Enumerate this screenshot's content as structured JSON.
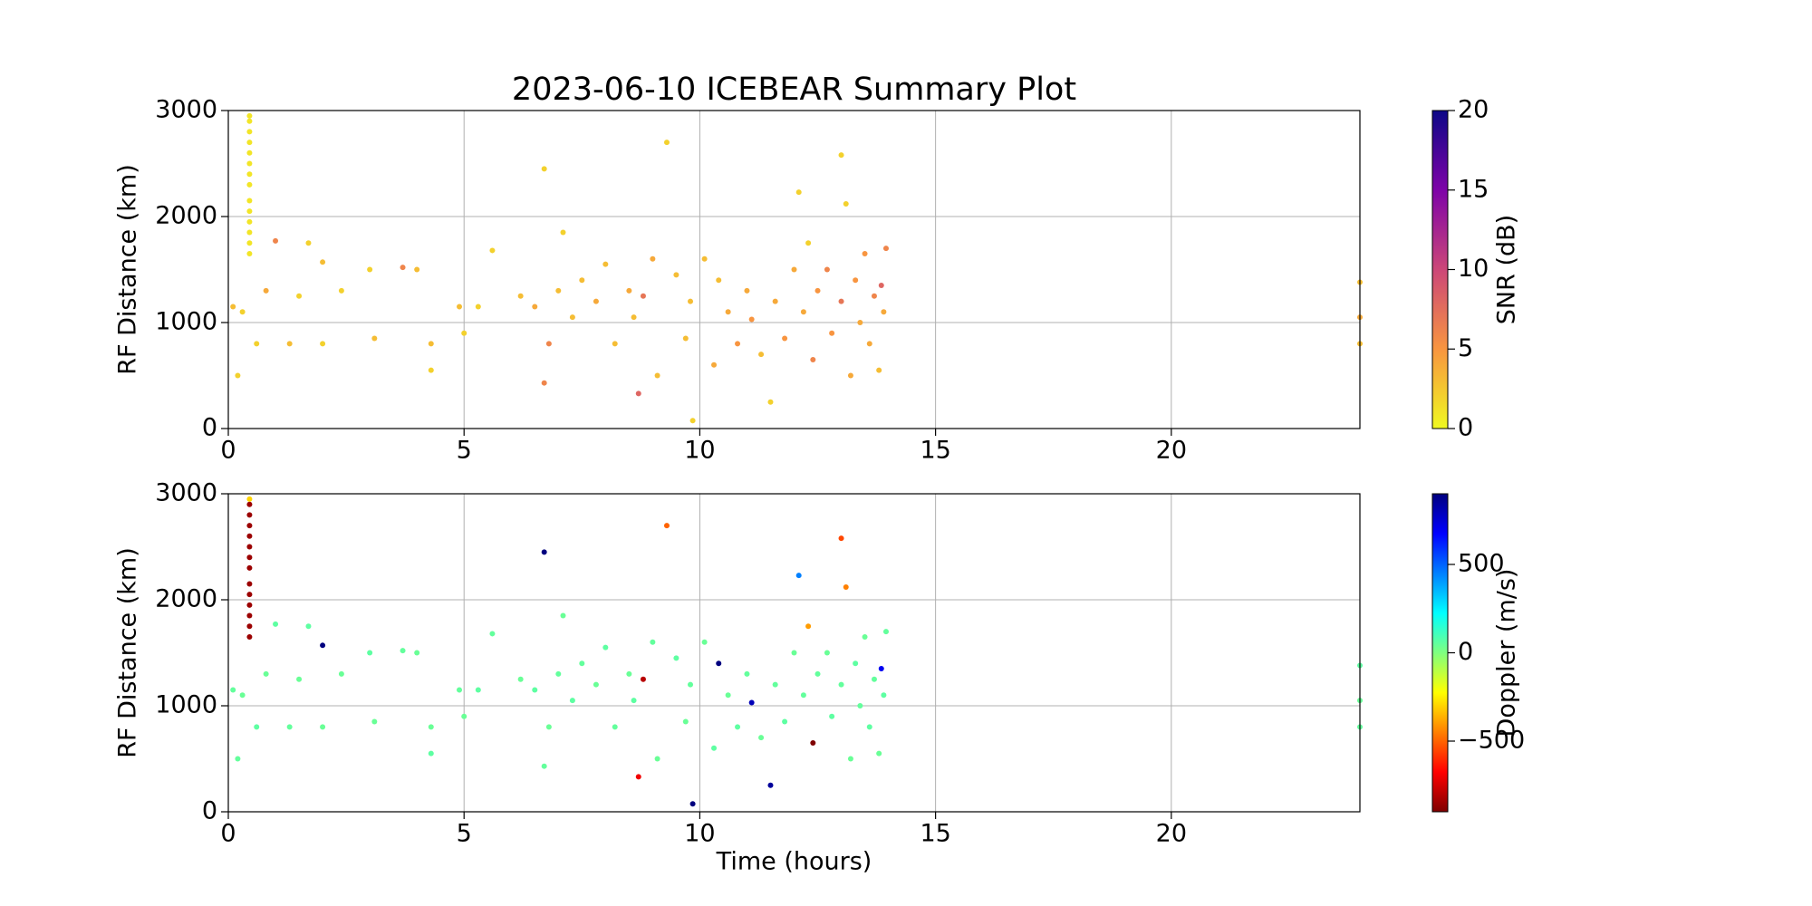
{
  "chart_data": [
    {
      "type": "scatter",
      "title": "2023-06-10 ICEBEAR Summary Plot",
      "ylabel": "RF Distance (km)",
      "x": [
        0.45,
        0.45,
        0.45,
        0.45,
        0.45,
        0.45,
        0.45,
        0.45,
        0.45,
        0.45,
        0.45,
        0.45,
        0.45,
        0.45,
        0.1,
        0.2,
        0.3,
        0.6,
        0.8,
        1.0,
        1.3,
        1.5,
        1.7,
        2.0,
        2.0,
        2.4,
        3.0,
        3.1,
        3.7,
        4.0,
        4.3,
        4.3,
        4.9,
        5.0,
        5.3,
        5.6,
        6.2,
        6.5,
        6.7,
        6.7,
        6.8,
        7.0,
        7.1,
        7.3,
        7.5,
        7.8,
        8.0,
        8.2,
        8.5,
        8.6,
        8.7,
        8.8,
        9.0,
        9.1,
        9.3,
        9.5,
        9.7,
        9.8,
        9.85,
        10.1,
        10.3,
        10.4,
        10.6,
        10.8,
        11.0,
        11.1,
        11.3,
        11.5,
        11.6,
        11.8,
        12.0,
        12.1,
        12.2,
        12.3,
        12.4,
        12.5,
        12.7,
        12.8,
        13.0,
        13.0,
        13.1,
        13.2,
        13.3,
        13.4,
        13.5,
        13.6,
        13.7,
        13.8,
        13.85,
        13.9,
        13.95,
        24.0,
        24.0,
        24.0
      ],
      "values": [
        1650,
        1750,
        1850,
        1950,
        2050,
        2150,
        2300,
        2400,
        2500,
        2600,
        2700,
        2800,
        2900,
        2950,
        1150,
        500,
        1100,
        800,
        1300,
        1770,
        800,
        1250,
        1750,
        1570,
        800,
        1300,
        1500,
        850,
        1520,
        1500,
        800,
        550,
        1150,
        900,
        1150,
        1680,
        1250,
        1150,
        2450,
        430,
        800,
        1300,
        1850,
        1050,
        1400,
        1200,
        1550,
        800,
        1300,
        1050,
        330,
        1250,
        1600,
        500,
        2700,
        1450,
        850,
        1200,
        75,
        1600,
        600,
        1400,
        1100,
        800,
        1300,
        1030,
        700,
        250,
        1200,
        850,
        1500,
        2230,
        1100,
        1750,
        650,
        1300,
        1500,
        900,
        2580,
        1200,
        2120,
        500,
        1400,
        1000,
        1650,
        800,
        1250,
        550,
        1350,
        1100,
        1700,
        1380,
        800,
        1050
      ],
      "color_values": [
        1,
        1,
        1,
        1,
        1,
        1,
        1,
        1,
        1,
        1,
        1,
        1,
        1,
        1,
        3,
        2,
        2,
        2,
        4,
        6,
        3,
        2,
        2,
        3,
        2,
        2,
        2,
        3,
        6,
        3,
        3,
        2,
        3,
        2,
        2,
        2,
        3,
        4,
        2,
        6,
        6,
        3,
        2,
        3,
        3,
        4,
        3,
        3,
        4,
        3,
        8,
        7,
        4,
        3,
        2,
        3,
        3,
        3,
        2,
        3,
        4,
        3,
        4,
        5,
        4,
        5,
        3,
        2,
        4,
        5,
        4,
        2,
        4,
        2,
        6,
        5,
        6,
        5,
        2,
        7,
        2,
        4,
        5,
        4,
        5,
        4,
        6,
        3,
        8,
        4,
        6,
        3,
        3,
        4
      ],
      "colormap": "plasma_r",
      "colorbar_label": "SNR (dB)",
      "clim": [
        0,
        20
      ],
      "cticks": [
        0,
        5,
        10,
        15,
        20
      ],
      "xlim": [
        0,
        24
      ],
      "xticks": [
        0,
        5,
        10,
        15,
        20
      ],
      "ylim": [
        0,
        3000
      ],
      "yticks": [
        0,
        1000,
        2000,
        3000
      ],
      "grid": true
    },
    {
      "type": "scatter",
      "ylabel": "RF Distance (km)",
      "xlabel": "Time (hours)",
      "x": [
        0.45,
        0.45,
        0.45,
        0.45,
        0.45,
        0.45,
        0.45,
        0.45,
        0.45,
        0.45,
        0.45,
        0.45,
        0.45,
        0.45,
        0.1,
        0.2,
        0.3,
        0.6,
        0.8,
        1.0,
        1.3,
        1.5,
        1.7,
        2.0,
        2.0,
        2.4,
        3.0,
        3.1,
        3.7,
        4.0,
        4.3,
        4.3,
        4.9,
        5.0,
        5.3,
        5.6,
        6.2,
        6.5,
        6.7,
        6.7,
        6.8,
        7.0,
        7.1,
        7.3,
        7.5,
        7.8,
        8.0,
        8.2,
        8.5,
        8.6,
        8.7,
        8.8,
        9.0,
        9.1,
        9.3,
        9.5,
        9.7,
        9.8,
        9.85,
        10.1,
        10.3,
        10.4,
        10.6,
        10.8,
        11.0,
        11.1,
        11.3,
        11.5,
        11.6,
        11.8,
        12.0,
        12.1,
        12.2,
        12.3,
        12.4,
        12.5,
        12.7,
        12.8,
        13.0,
        13.0,
        13.1,
        13.2,
        13.3,
        13.4,
        13.5,
        13.6,
        13.7,
        13.8,
        13.85,
        13.9,
        13.95,
        24.0,
        24.0,
        24.0
      ],
      "values": [
        1650,
        1750,
        1850,
        1950,
        2050,
        2150,
        2300,
        2400,
        2500,
        2600,
        2700,
        2800,
        2900,
        2950,
        1150,
        500,
        1100,
        800,
        1300,
        1770,
        800,
        1250,
        1750,
        1570,
        800,
        1300,
        1500,
        850,
        1520,
        1500,
        800,
        550,
        1150,
        900,
        1150,
        1680,
        1250,
        1150,
        2450,
        430,
        800,
        1300,
        1850,
        1050,
        1400,
        1200,
        1550,
        800,
        1300,
        1050,
        330,
        1250,
        1600,
        500,
        2700,
        1450,
        850,
        1200,
        75,
        1600,
        600,
        1400,
        1100,
        800,
        1300,
        1030,
        700,
        250,
        1200,
        850,
        1500,
        2230,
        1100,
        1750,
        650,
        1300,
        1500,
        900,
        2580,
        1200,
        2120,
        500,
        1400,
        1000,
        1650,
        800,
        1250,
        550,
        1350,
        1100,
        1700,
        1380,
        800,
        1050
      ],
      "color_values": [
        -850,
        -850,
        -850,
        -850,
        -850,
        -850,
        -850,
        -850,
        -850,
        -850,
        -850,
        -850,
        -850,
        -300,
        50,
        50,
        40,
        60,
        40,
        60,
        50,
        40,
        60,
        900,
        40,
        40,
        60,
        40,
        50,
        40,
        40,
        60,
        50,
        40,
        60,
        50,
        40,
        60,
        900,
        50,
        40,
        50,
        40,
        60,
        50,
        40,
        60,
        50,
        40,
        60,
        -700,
        -800,
        50,
        40,
        -500,
        60,
        40,
        50,
        900,
        40,
        60,
        900,
        40,
        60,
        50,
        800,
        40,
        850,
        50,
        60,
        40,
        450,
        50,
        -400,
        -900,
        50,
        40,
        60,
        -550,
        50,
        -450,
        40,
        60,
        50,
        40,
        60,
        50,
        40,
        700,
        60,
        50,
        60,
        50,
        40
      ],
      "colormap": "jet_r",
      "colorbar_label": "Doppler (m/s)",
      "clim": [
        -900,
        900
      ],
      "cticks": [
        {
          "value": -500,
          "label": "−500"
        },
        0,
        500
      ],
      "xlim": [
        0,
        24
      ],
      "xticks": [
        0,
        5,
        10,
        15,
        20
      ],
      "ylim": [
        0,
        3000
      ],
      "yticks": [
        0,
        1000,
        2000,
        3000
      ],
      "grid": true
    }
  ]
}
